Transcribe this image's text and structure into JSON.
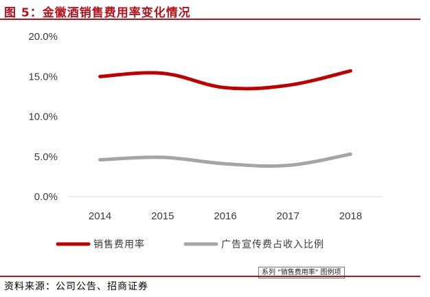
{
  "header": {
    "title": "图 5：金徽酒销售费用率变化情况"
  },
  "footer": {
    "source": "资料来源：公司公告、招商证券"
  },
  "tooltip": {
    "text": "系列 \"销售费用率\" 图例项"
  },
  "colors": {
    "accent": "#b5121b",
    "series_1": "#c00000",
    "series_2": "#a5a5a5",
    "axis": "#d9d9d9"
  },
  "chart_data": {
    "type": "line",
    "categories": [
      "2014",
      "2015",
      "2016",
      "2017",
      "2018"
    ],
    "y_ticks": [
      "0.0%",
      "5.0%",
      "10.0%",
      "15.0%",
      "20.0%"
    ],
    "ylim": [
      0,
      20
    ],
    "grid": false,
    "legend_position": "bottom",
    "series": [
      {
        "name": "销售费用率",
        "values": [
          15.0,
          15.4,
          13.6,
          13.9,
          15.7
        ]
      },
      {
        "name": "广告宣传费占收入比例",
        "values": [
          4.6,
          4.9,
          4.1,
          3.9,
          5.3
        ]
      }
    ]
  }
}
